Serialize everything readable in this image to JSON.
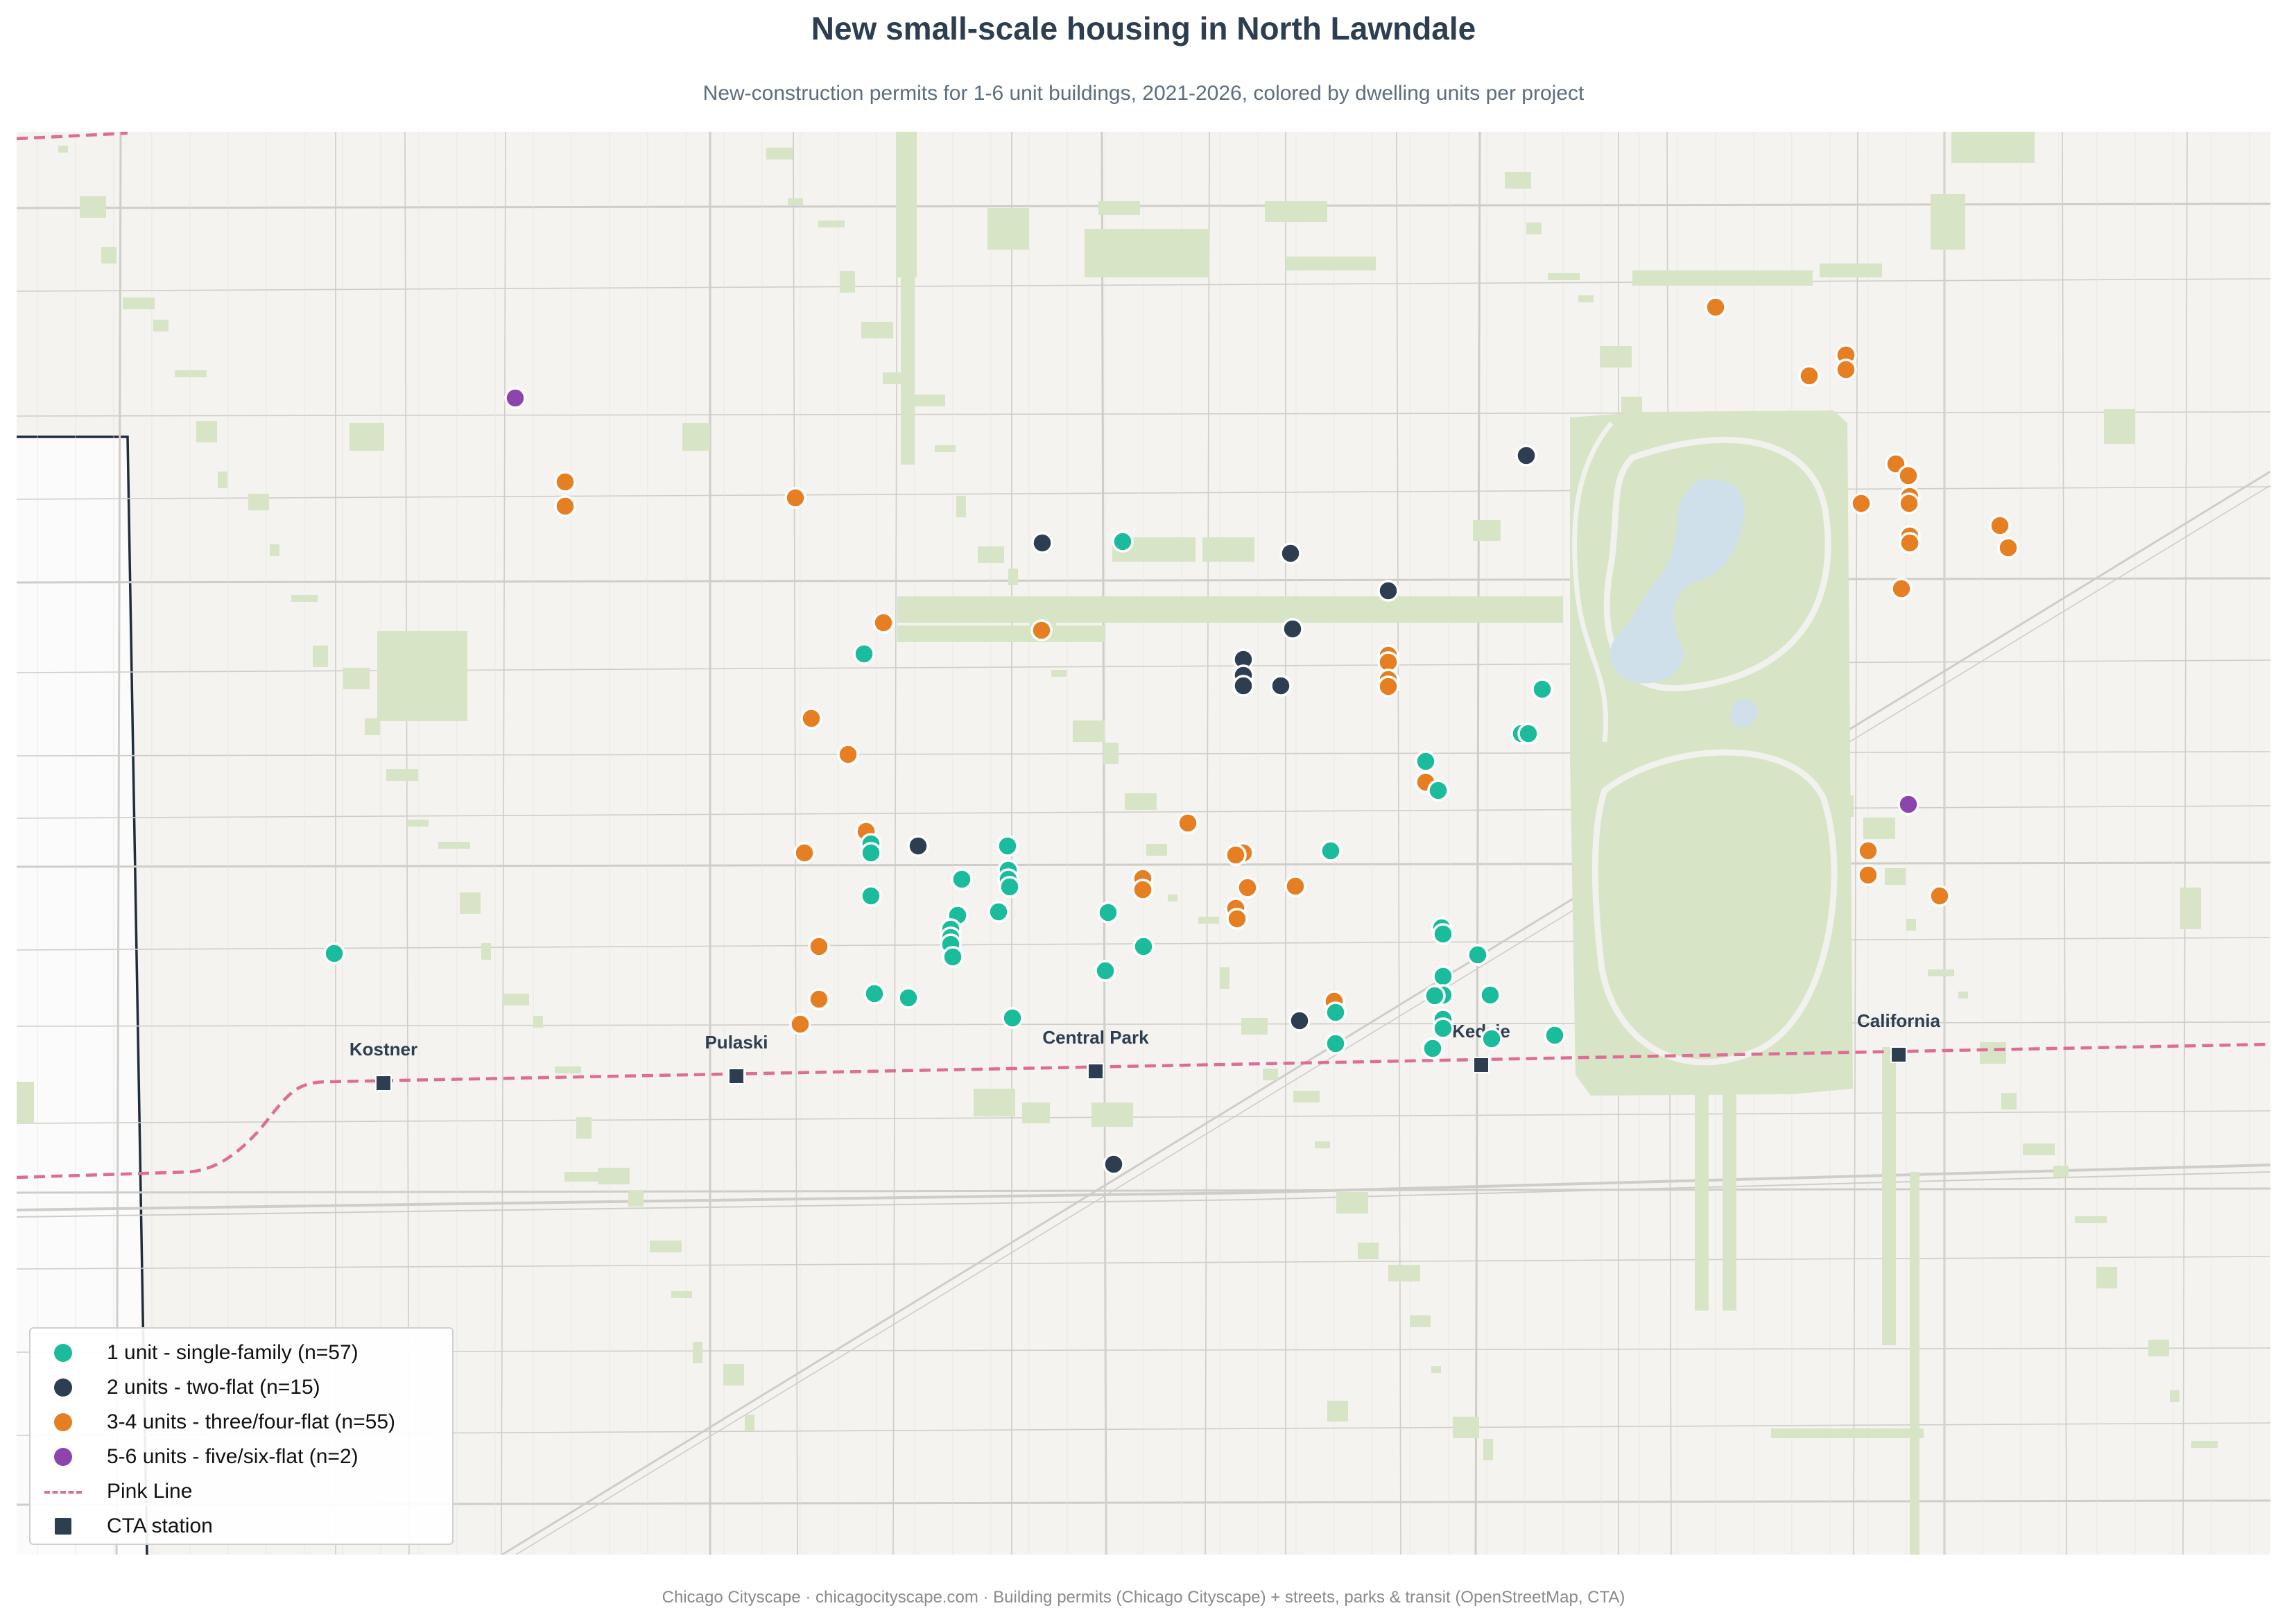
{
  "title": "New small-scale housing in North Lawndale",
  "subtitle": "New-construction permits for 1-6 unit buildings, 2021-2026, colored by dwelling units per project",
  "footer": "Chicago Cityscape  ·  chicagocityscape.com  ·  Building permits (Chicago Cityscape) + streets, parks & transit (OpenStreetMap, CTA)",
  "colors": {
    "one_unit": "#1abc9c",
    "two_units": "#2c3e50",
    "three_four_units": "#e67e22",
    "five_six_units": "#8e44ad",
    "pink_line": "#de6d96",
    "station": "#2c3e50",
    "park": "#d7e4c6",
    "water": "#cfe0ea",
    "land": "#f4f3f0"
  },
  "legend": {
    "items": [
      {
        "label": "1 unit - single-family (n=57)",
        "color": "#1abc9c",
        "kind": "circle"
      },
      {
        "label": "2 units - two-flat (n=15)",
        "color": "#2c3e50",
        "kind": "circle"
      },
      {
        "label": "3-4 units - three/four-flat (n=55)",
        "color": "#e67e22",
        "kind": "circle"
      },
      {
        "label": "5-6 units - five/six-flat (n=2)",
        "color": "#8e44ad",
        "kind": "circle"
      },
      {
        "label": "Pink Line",
        "color": "#de6d96",
        "kind": "line"
      },
      {
        "label": "CTA station",
        "color": "#2c3e50",
        "kind": "square"
      }
    ]
  },
  "stations": [
    {
      "name": "Kostner"
    },
    {
      "name": "Pulaski"
    },
    {
      "name": "Central Park"
    },
    {
      "name": "Kedzie"
    },
    {
      "name": "California"
    }
  ]
}
